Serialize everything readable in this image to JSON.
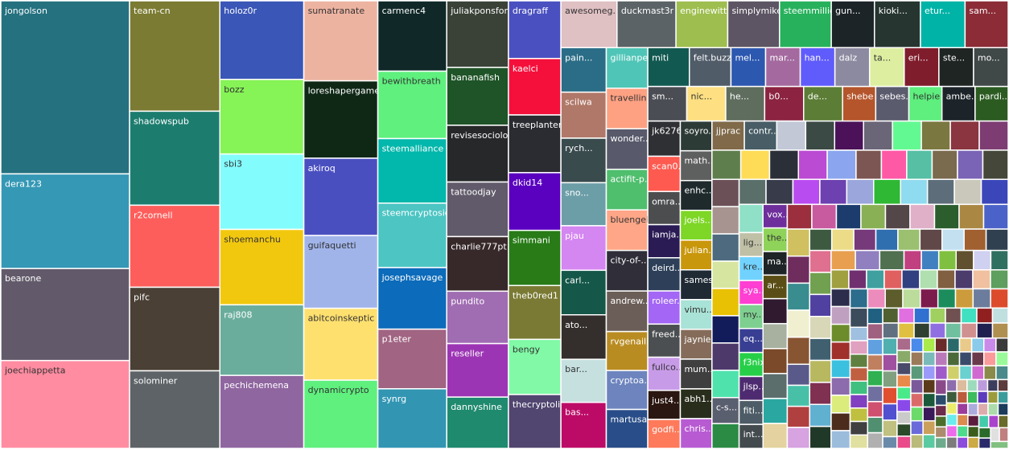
{
  "chart_data": {
    "type": "treemap",
    "categories": [
      "jongolson",
      "dera123",
      "bearone",
      "joechiappetta",
      "team-cn",
      "shadowspub",
      "r2cornell",
      "pifc",
      "solominer",
      "holoz0r",
      "bozz",
      "sbi3",
      "shoemanchu",
      "raj808",
      "pechichemena",
      "sumatranate",
      "loreshapergames",
      "akiroq",
      "guifaquetti",
      "abitcoinskeptic",
      "dynamicrypto",
      "carmenc4",
      "bewithbreath",
      "steemalliance",
      "steemcryptosicko",
      "josephsavage",
      "p1eter",
      "synrg",
      "juliakponsford",
      "bananafish",
      "revisesociolo...",
      "tattoodjay",
      "charlie777pt",
      "pundito",
      "reseller",
      "dannyshine",
      "dragraff",
      "kaelci",
      "treeplanter",
      "dkid14",
      "simmani",
      "theb0red1",
      "bengy",
      "thecryptolink",
      "awesomeg...",
      "duckmast3r",
      "enginewitty",
      "simplymike",
      "steemmillio...",
      "gun...",
      "kioki...",
      "etur...",
      "sam...",
      "pain...",
      "scilwa",
      "rych...",
      "sno...",
      "pjau",
      "carl...",
      "ato...",
      "bar...",
      "bas...",
      "gillianpe...",
      "travellin...",
      "wonder...",
      "actifit-p...",
      "bluengel",
      "city-of-...",
      "andrew...",
      "rvgenaille",
      "cryptoa...",
      "martusa...",
      "miti",
      "felt.buzz",
      "mel...",
      "mar...",
      "han...",
      "dalz",
      "ta...",
      "eri...",
      "ste...",
      "mo...",
      "sm...",
      "nic...",
      "he...",
      "b0...",
      "de...",
      "shebe",
      "sebes...",
      "helpie",
      "ambe...",
      "pardi...",
      "jk6276",
      "scan0...",
      "omra...",
      "iamja...",
      "deird...",
      "roleer...",
      "freed...",
      "fullco...",
      "just4...",
      "godfi...",
      "soyro...",
      "math...",
      "enhc...",
      "joels...",
      "julian...",
      "sames",
      "vimu...",
      "jaynie",
      "mum...",
      "abh1...",
      "chris...",
      "jjprac",
      "contr...",
      null,
      null,
      null,
      null,
      null,
      null,
      null,
      null,
      null,
      null,
      null,
      null,
      null,
      null,
      null,
      null,
      null,
      null,
      null,
      null,
      null,
      null,
      null,
      null,
      null,
      null,
      null,
      "c-s...",
      null,
      null,
      null,
      null,
      null,
      null,
      null,
      null,
      null,
      null,
      null,
      null,
      "lig...",
      "kre...",
      "sya...",
      "my...",
      "eq...",
      "f3nix",
      "jlsp...",
      "fiti...",
      "int...",
      "vox...",
      "the...",
      "ma...",
      "ar...",
      null,
      null,
      null,
      null,
      null,
      null,
      null,
      null,
      null,
      null,
      null,
      null,
      null,
      null,
      null,
      null,
      null,
      null,
      null,
      null,
      null,
      null,
      null,
      null,
      null,
      null,
      null,
      null,
      null,
      null,
      null,
      null,
      null,
      null,
      null,
      null,
      null,
      null,
      null,
      null,
      null,
      null,
      null,
      null,
      null,
      null,
      null,
      null,
      null,
      null,
      null,
      null,
      null,
      null,
      null,
      null,
      null,
      null,
      null,
      null,
      null,
      null,
      null,
      null,
      null,
      null,
      null,
      null,
      null,
      null,
      null,
      null,
      null,
      null,
      null,
      null,
      null,
      null,
      null,
      null,
      null,
      null,
      null,
      null,
      null,
      null,
      null,
      null,
      null,
      null,
      null,
      null,
      null,
      null,
      null,
      null,
      null,
      null,
      null,
      null,
      null,
      null,
      null,
      null,
      null,
      null,
      null,
      null,
      null,
      null,
      null,
      null,
      null,
      null,
      null,
      null,
      null,
      null,
      null,
      null,
      null,
      null,
      null,
      null,
      null,
      null,
      null,
      null,
      null,
      null,
      null,
      null,
      null,
      null,
      null,
      null,
      null,
      null,
      null,
      null,
      null,
      null,
      null,
      null,
      null,
      null,
      null,
      null,
      null,
      null,
      null,
      null,
      null,
      null,
      null,
      null,
      null,
      null,
      null,
      null,
      null,
      null,
      null,
      null,
      null,
      null,
      null,
      null,
      null,
      null,
      null,
      null,
      null,
      null,
      null,
      null,
      null,
      null,
      null,
      null,
      null,
      null,
      null,
      null,
      null,
      null,
      null,
      null,
      null,
      null,
      null,
      null,
      null,
      null,
      null,
      null,
      null,
      null,
      null,
      null,
      null,
      null,
      null,
      null,
      null
    ],
    "values": [
      331,
      181,
      176,
      168,
      148,
      126,
      110,
      112,
      104,
      98,
      93,
      94,
      94,
      88,
      91,
      88,
      85,
      85,
      80,
      79,
      75,
      72,
      69,
      66,
      66,
      63,
      61,
      61,
      61,
      53,
      52,
      50,
      50,
      48,
      49,
      47,
      45,
      44,
      45,
      45,
      43,
      42,
      43,
      42,
      39,
      41,
      36,
      36,
      36,
      30,
      32,
      31,
      30,
      30,
      31,
      30,
      29,
      30,
      30,
      30,
      29,
      31,
      25,
      25,
      25,
      25,
      25,
      25,
      25,
      24,
      24,
      24,
      24,
      24,
      20,
      20,
      20,
      20,
      20,
      20,
      20,
      20,
      20,
      20,
      20,
      20,
      20,
      17,
      17,
      17,
      17,
      17,
      17,
      17,
      16,
      16,
      16,
      16,
      16,
      16,
      14,
      14,
      14,
      14,
      14,
      14,
      14,
      14,
      14,
      14,
      14,
      14,
      14,
      14,
      14,
      12.5,
      12.5,
      12.5,
      12.5,
      12.5,
      12.5,
      12.5,
      12.5,
      12.5,
      12.5,
      12.5,
      12.5,
      12.5,
      11,
      11,
      11,
      11,
      11,
      11,
      11,
      11,
      11,
      11,
      11,
      11,
      11,
      11,
      10.5,
      10,
      10,
      10,
      10,
      10,
      10,
      10,
      10,
      10,
      10,
      10,
      10,
      8.5,
      8.5,
      8.5,
      8.5,
      8.5,
      8.5,
      8.5,
      8.5,
      8.5,
      8.5,
      8.5,
      8.5,
      8.5,
      9,
      9,
      9,
      9,
      9,
      9,
      9,
      9,
      9,
      9,
      9,
      9,
      9,
      9,
      9,
      9,
      9,
      9,
      9,
      9,
      7,
      7,
      7,
      7,
      7,
      7,
      7,
      7,
      7,
      7,
      7,
      7,
      7,
      7,
      7,
      7,
      7,
      7,
      7,
      7,
      7,
      7,
      7,
      7,
      7,
      5,
      5,
      5,
      5,
      5,
      5,
      5,
      5,
      5,
      5,
      5,
      5,
      5,
      5,
      5,
      5,
      5,
      5,
      5,
      5,
      5,
      5,
      5,
      5,
      5,
      5,
      5,
      5,
      5,
      5,
      5,
      5,
      5,
      5,
      5,
      3.5,
      3.5,
      3.5,
      3.5,
      3.5,
      3.5,
      3.5,
      3.5,
      3.5,
      3.5,
      3.5,
      3.5,
      3.5,
      3.5,
      3.5,
      3.5,
      3.5,
      3.5,
      3.5,
      3.5,
      3.5,
      3.5,
      3.5,
      3.5,
      3.5,
      3.5,
      3.5,
      3.5,
      3.5,
      3.5,
      3.5,
      3.5,
      3.5,
      3.5,
      3.5,
      3.5,
      3.5,
      3.5,
      3.5,
      3.5,
      2.5,
      2.5,
      2.5,
      2.5,
      2.5,
      2.5,
      2.5,
      2.5,
      2.5,
      2.5,
      2.5,
      2.5,
      2.5,
      2.5,
      2.5,
      2.5,
      2.5,
      2.5,
      2.5,
      2.5,
      2.5,
      2.5,
      2.5,
      2.5,
      2.5,
      2.5,
      2.5,
      2.5,
      2.5,
      2.5,
      2.5,
      2.5,
      2.5,
      2.5,
      2.5,
      2.5,
      2.5,
      2.5,
      2.5,
      2.5,
      2.5,
      2.5,
      2.5,
      2.5,
      2.5,
      1.8,
      1.8,
      1.8,
      1.8,
      1.8,
      1.8,
      1.8,
      1.8,
      1.8,
      1.8,
      1.8,
      1.8,
      1.8,
      1.8,
      1.8,
      1.8,
      1.8,
      1.8,
      1.8,
      1.8,
      1.8,
      1.8,
      1.8,
      1.8,
      1.8,
      1.8,
      1.8,
      1.8,
      1.8,
      1.8,
      1.8,
      1.8,
      1.8,
      1.8,
      1.8,
      1.8,
      1.8,
      1.8,
      1.8,
      1.8
    ],
    "colors": [
      "#25717f",
      "#3598b5",
      "#625a6a",
      "#ff8ca1",
      "#7b7b33",
      "#1c7d6f",
      "#fe5e5b",
      "#4a4035",
      "#5d6366",
      "#3a56b6",
      "#86f356",
      "#83fcfd",
      "#f2c80f",
      "#6aad9c",
      "#9066a0",
      "#edb3a1",
      "#0f2816",
      "#4a4fc0",
      "#a1b4ea",
      "#fee06f",
      "#5ff07e",
      "#102928",
      "#5ff07e",
      "#02b7ab",
      "#4cc5c3",
      "#0c6bba",
      "#a16483",
      "#3296b3",
      "#3a4237",
      "#1f5428",
      "#27282a",
      "#615a6a",
      "#37292a",
      "#a06cb2",
      "#9c35b4",
      "#208a6f",
      "#4a50c0",
      "#f5103b",
      "#2b2c31",
      "#5a00bf",
      "#287b17",
      "#7a7a34",
      "#81f9a6",
      "#514670",
      "#dfc0c3",
      "#5b6366",
      "#9ebe4f",
      "#5d5563",
      "#27b15c",
      "#1c2428",
      "#263530",
      "#00b3a7",
      "#8b2c37",
      "#2b6d87",
      "#b07868",
      "#3a4b4e",
      "#6c9ea8",
      "#d486f1",
      "#155749",
      "#342f2c",
      "#c6e0e0",
      "#bc0b67",
      "#4fc5b7",
      "#fea182",
      "#585a6b",
      "#4fbe6d",
      "#fea687",
      "#2f2e39",
      "#6b5e58",
      "#b98c22",
      "#6d84be",
      "#294d88",
      "#125951",
      "#515c69",
      "#2c58b0",
      "#a46a9f",
      "#605cfb",
      "#8c8aa0",
      "#ddeea1",
      "#7f1d2c",
      "#1f2523",
      "#404848",
      "#4b4d55",
      "#fee082",
      "#5e6d5d",
      "#8b2341",
      "#5c7d36",
      "#b5552b",
      "#5b5b6e",
      "#5eef7e",
      "#1c2429",
      "#2c5b21",
      "#2f3033",
      "#fe5a50",
      "#4b4d4f",
      "#2a1b55",
      "#2e4059",
      "#a366f5",
      "#4c4f51",
      "#c89be8",
      "#2b1711",
      "#fe7a5b",
      "#2d3b36",
      "#5e5f5f",
      "#1e2a2c",
      "#7ed626",
      "#c9970b",
      "#1f2a34",
      "#a9e2d6",
      "#856c5a",
      "#3f3f3f",
      "#292d1c",
      "#b85bd3",
      "#806a4a",
      "#485d66",
      "#c2c8d6",
      "#3b4a44",
      "#4c1259",
      "#6a6577",
      "#63f992",
      "#7b7740",
      "#8a3540",
      "#7d3d72",
      "#5f7e4e",
      "#fedc58",
      "#2b3038",
      "#bb4bd3",
      "#8ba6ee",
      "#7c5652",
      "#fe59a5",
      "#56bfa4",
      "#7a6a4e",
      "#7a64b5",
      "#45473a",
      "#6c5058",
      "#a79490",
      "#4d6a7f",
      "#d6e6a0",
      "#e8c104",
      "#131c5b",
      "#4d3a6a",
      "#4fe2ad",
      "#5a5f70",
      "#2b8b45",
      "#5a6f6a",
      "#383c4a",
      "#b94cf1",
      "#6d41af",
      "#9aa6dc",
      "#2fb834",
      "#8fdbf0",
      "#5d6e7a",
      "#c9c8ba",
      "#3b47b9",
      "#8fe0c6",
      "#c0c0a6",
      "#71d2ff",
      "#fe3fd2",
      "#7ed090",
      "#383f93",
      "#27cf49",
      "#4e2b70",
      "#4d5c66",
      "#434b4f",
      "#6e2e9b",
      "#8fd35a",
      "#1f2426",
      "#5a4e16",
      "#301a2f",
      "#a8b1a0",
      "#7a4a2a",
      "#5b6e6c",
      "#2aa7a0",
      "#e4d3a0",
      "#9b2f3e",
      "#c85aa0",
      "#1d3c6e",
      "#8ab055",
      "#53474a",
      "#e0b0c8",
      "#2b5d2d",
      "#aa8844",
      "#4b63c8",
      "#d0c060",
      "#6f2d5e",
      "#3a8d8f",
      "#f0f0d0",
      "#885533",
      "#5a5a8a",
      "#48c0a8",
      "#b04040",
      "#d7a3e0",
      "#3d5a40",
      "#ecdc88",
      "#763a7a",
      "#2f6fb0",
      "#9ac070",
      "#604848",
      "#c2e0f0",
      "#a06030",
      "#304050",
      "#e07090",
      "#70a050",
      "#5040a0",
      "#d8d8b8",
      "#406070",
      "#b8b860",
      "#803050",
      "#60b0d0",
      "#203828",
      "#e8a050",
      "#9080c0",
      "#507050",
      "#c04080",
      "#4080c0",
      "#80c040",
      "#605030",
      "#d0d0f0",
      "#307060",
      "#a0a040",
      "#703070",
      "#40a0a0",
      "#e06060",
      "#304080",
      "#b0e0b0",
      "#806040",
      "#4c3c6c",
      "#f0c0a0",
      "#5e9e5e",
      "#2c2c4c",
      "#c0a0c0",
      "#6c8c2c",
      "#a0302c",
      "#3cc0e0",
      "#8c6cac",
      "#dcec7c",
      "#4c2c1c",
      "#9cbcdc",
      "#2c6c8c",
      "#ec8cbc",
      "#5c5c2c",
      "#bcdc9c",
      "#7c1c4c",
      "#1c8c5c",
      "#cc9c3c",
      "#6c7c9c",
      "#dc4c2c",
      "#3c4c5c",
      "#a0c0e0",
      "#e0a0c0",
      "#608040",
      "#c06040",
      "#40c080",
      "#8040c0",
      "#c0c040",
      "#404040",
      "#e0e0a0",
      "#206080",
      "#a06080",
      "#60a0e0",
      "#c08060",
      "#30b050",
      "#7070a0",
      "#d05070",
      "#509070",
      "#b0b0b0",
      "#506030",
      "#e070e0",
      "#3070d0",
      "#a0d060",
      "#705050",
      "#40e0c0",
      "#902020",
      "#c0e0e0",
      "#607080",
      "#e0c040",
      "#304030",
      "#9070e0",
      "#70c0a0",
      "#d09090",
      "#202050",
      "#b09050",
      "#50b0b0",
      "#a050a0",
      "#80a080",
      "#e05030",
      "#5050d0",
      "#c0c080",
      "#6a8aaa",
      "#aa6a8a",
      "#8aaa6a",
      "#4a4a6a",
      "#ea8a4a",
      "#4aea8a",
      "#8a4aea",
      "#cacaca",
      "#2a4a2a",
      "#ea4a8a",
      "#4a8aea",
      "#aaea4a",
      "#6a2a2a",
      "#2a6a6a",
      "#eaca8a",
      "#8acaea",
      "#ca8aea",
      "#3a3a3a",
      "#9a7a5a",
      "#5a9a7a",
      "#7a5a9a",
      "#da6a6a",
      "#6ada6a",
      "#6a6ada",
      "#baba7a",
      "#7ababa",
      "#ba7aba",
      "#4a6a3a",
      "#3a4a6a",
      "#6a3a4a",
      "#fa9a9a",
      "#9afa9a",
      "#9a9afa",
      "#5a3a1a",
      "#1a5a3a",
      "#3a1a5a",
      "#caa05a",
      "#5acaa0",
      "#a05aca",
      "#d0d06a",
      "#6ad0d0",
      "#d06ad0",
      "#8a8a4a",
      "#4a8a8a",
      "#8a4a8a",
      "#2c4c6c",
      "#6c2c4c",
      "#4c6c2c",
      "#ac8c6c",
      "#6cac8c",
      "#8c6cac",
      "#dcbc9c",
      "#9cdcbc",
      "#bc9cdc",
      "#3c3c5c",
      "#5c3c3c",
      "#3c5c3c",
      "#ecec6c",
      "#6cecec",
      "#ec6cec",
      "#7c7c7c",
      "#bc5c3c",
      "#3cbc5c",
      "#5c3cbc",
      "#9c9c3c",
      "#3c9c9c",
      "#9c3c9c",
      "#dc8c4c",
      "#4cdc8c",
      "#8c4cdc",
      "#acacdc",
      "#dcacac",
      "#acdcac",
      "#1c3c5c",
      "#5c1c3c",
      "#3c5c1c",
      "#ccaa44",
      "#44ccaa",
      "#aa44cc",
      "#6a6a2a",
      "#2a6a2a",
      "#2a2a6a",
      "#e0e0e0",
      "#c08080",
      "#80c080"
    ]
  }
}
